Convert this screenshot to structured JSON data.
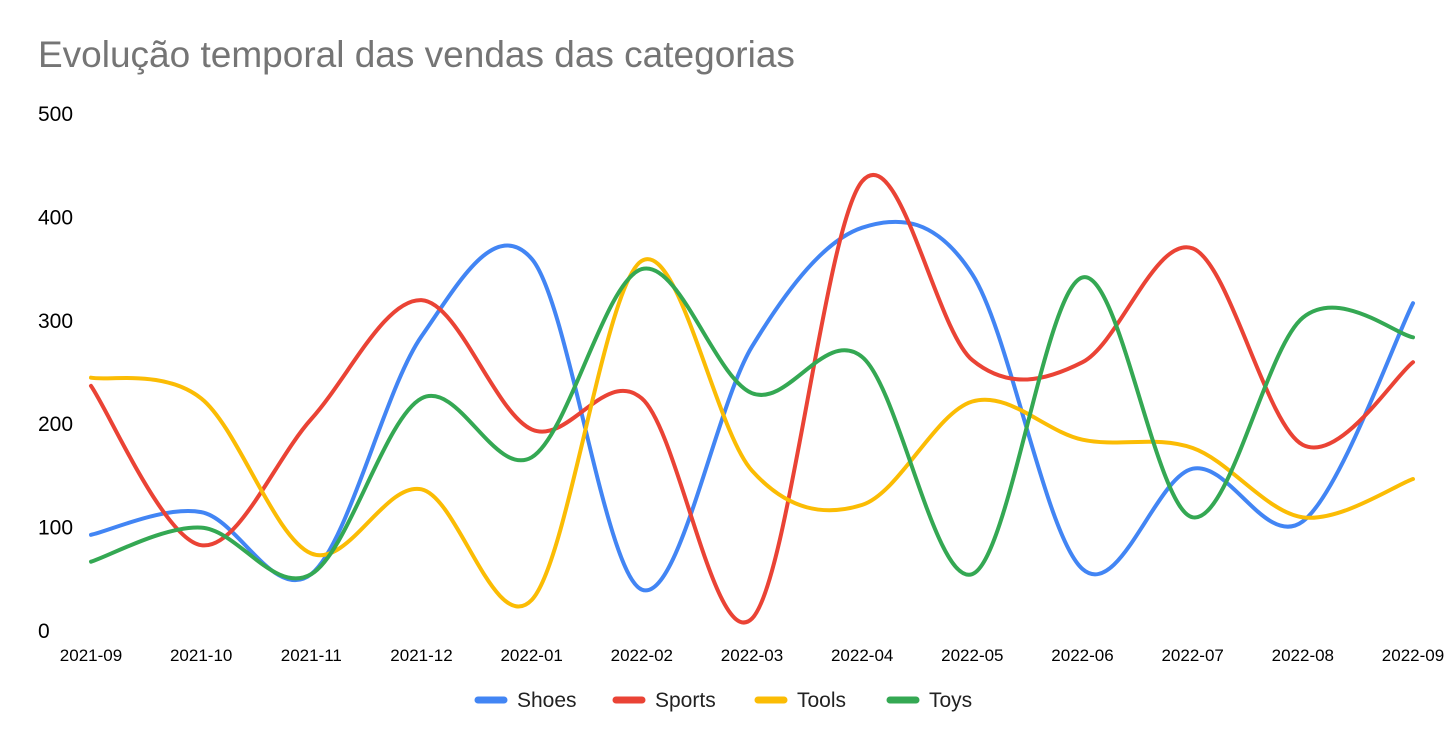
{
  "chart_data": {
    "type": "line",
    "title": "Evolução temporal das vendas das categorias",
    "xlabel": "",
    "ylabel": "",
    "ylim": [
      0,
      500
    ],
    "yticks": [
      "0",
      "100",
      "200",
      "300",
      "400",
      "500"
    ],
    "categories": [
      "2021-09",
      "2021-10",
      "2021-11",
      "2021-12",
      "2022-01",
      "2022-02",
      "2022-03",
      "2022-04",
      "2022-05",
      "2022-06",
      "2022-07",
      "2022-08",
      "2022-09"
    ],
    "grid": false,
    "legend_position": "bottom",
    "smooth": true,
    "series": [
      {
        "name": "Shoes",
        "color": "#4285F4",
        "values": [
          93,
          115,
          55,
          285,
          360,
          40,
          275,
          390,
          345,
          60,
          157,
          106,
          317
        ]
      },
      {
        "name": "Sports",
        "color": "#EA4335",
        "values": [
          237,
          83,
          205,
          320,
          195,
          225,
          12,
          435,
          262,
          260,
          370,
          180,
          260
        ]
      },
      {
        "name": "Tools",
        "color": "#FBBC04",
        "values": [
          245,
          225,
          75,
          137,
          30,
          358,
          155,
          122,
          222,
          185,
          177,
          110,
          147
        ]
      },
      {
        "name": "Toys",
        "color": "#34A853",
        "values": [
          67,
          100,
          55,
          225,
          168,
          350,
          230,
          265,
          55,
          342,
          110,
          303,
          284
        ]
      }
    ]
  }
}
